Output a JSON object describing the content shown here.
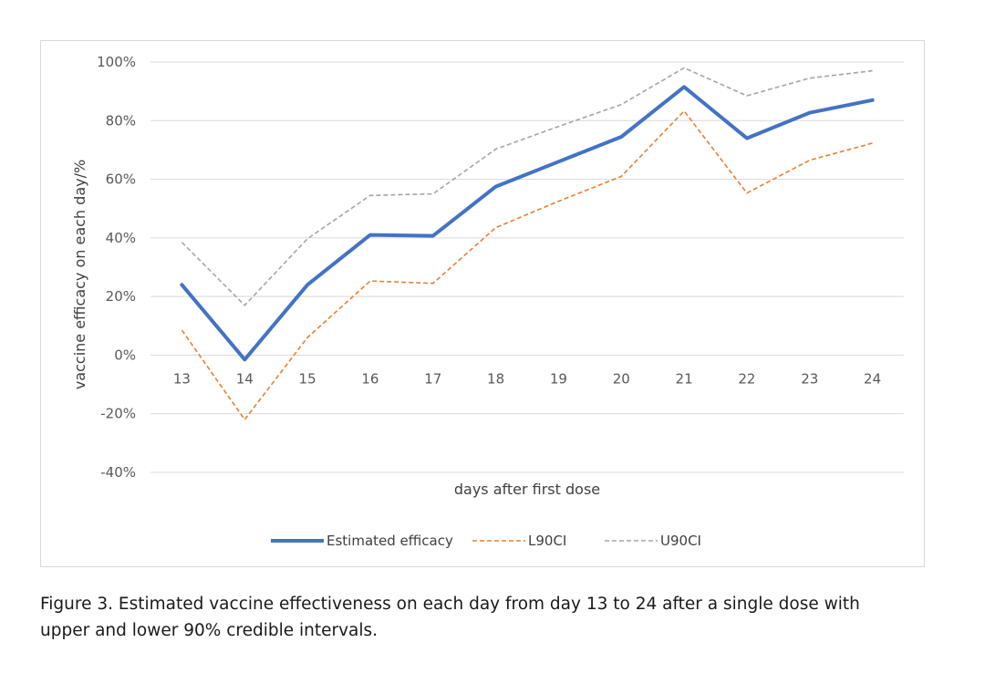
{
  "chart_data": {
    "type": "line",
    "x": [
      13,
      14,
      15,
      16,
      17,
      18,
      19,
      20,
      21,
      22,
      23,
      24
    ],
    "xlabel": "days after first dose",
    "ylabel": "vaccine efficacy on each day/%",
    "ylim": [
      -40,
      100
    ],
    "yticks": [
      100,
      80,
      60,
      40,
      20,
      0,
      -20,
      -40
    ],
    "ytick_labels": [
      "100%",
      "80%",
      "60%",
      "40%",
      "20%",
      "0%",
      "-20%",
      "-40%"
    ],
    "grid": true,
    "legend_position": "bottom",
    "series": [
      {
        "name": "Estimated efficacy",
        "color": "#4472c4",
        "style": "solid",
        "values": [
          24,
          -1.5,
          24,
          41,
          40.7,
          57.5,
          66,
          74.5,
          91.5,
          74,
          82.7,
          87
        ]
      },
      {
        "name": "L90CI",
        "color": "#ed7d31",
        "style": "dashed",
        "values": [
          8.5,
          -22,
          6,
          25.3,
          24.5,
          43.5,
          52.5,
          61,
          83.3,
          55.3,
          66.5,
          72.3
        ]
      },
      {
        "name": "U90CI",
        "color": "#a5a5a5",
        "style": "dashed",
        "values": [
          38.5,
          17,
          39.7,
          54.5,
          55,
          70.3,
          78,
          85.5,
          98,
          88.5,
          94.5,
          97
        ]
      }
    ]
  },
  "caption": {
    "line1": "Figure 3. Estimated vaccine effectiveness on each day from day 13 to 24 after a single dose with",
    "line2": "upper and lower 90% credible intervals."
  }
}
